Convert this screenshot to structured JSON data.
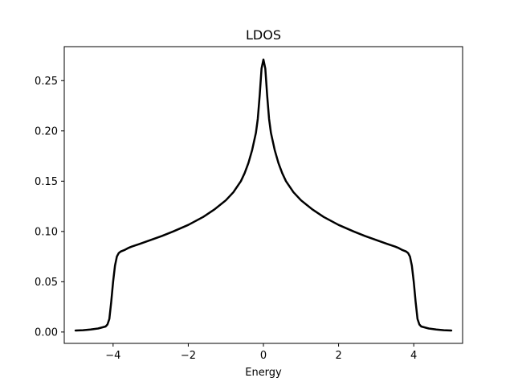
{
  "chart_data": {
    "type": "line",
    "title": "LDOS",
    "xlabel": "Energy",
    "ylabel": "",
    "xlim": [
      -5.3,
      5.3
    ],
    "ylim": [
      -0.0113,
      0.2838
    ],
    "grid": false,
    "legend": "none",
    "line_color": "#000000",
    "x_ticks": [
      {
        "value": -4,
        "label": "−4"
      },
      {
        "value": -2,
        "label": "−2"
      },
      {
        "value": 0,
        "label": "0"
      },
      {
        "value": 2,
        "label": "2"
      },
      {
        "value": 4,
        "label": "4"
      }
    ],
    "y_ticks": [
      {
        "value": 0.0,
        "label": "0.00"
      },
      {
        "value": 0.05,
        "label": "0.05"
      },
      {
        "value": 0.1,
        "label": "0.10"
      },
      {
        "value": 0.15,
        "label": "0.15"
      },
      {
        "value": 0.2,
        "label": "0.20"
      },
      {
        "value": 0.25,
        "label": "0.25"
      }
    ],
    "series": [
      {
        "x": [
          -5.0,
          -4.8,
          -4.6,
          -4.4,
          -4.3,
          -4.2,
          -4.15,
          -4.1,
          -4.05,
          -4.0,
          -3.95,
          -3.9,
          -3.85,
          -3.8,
          -3.7,
          -3.6,
          -3.5,
          -3.3,
          -3.0,
          -2.7,
          -2.4,
          -2.0,
          -1.6,
          -1.3,
          -1.0,
          -0.8,
          -0.6,
          -0.5,
          -0.4,
          -0.3,
          -0.2,
          -0.15,
          -0.1,
          -0.05,
          0.0,
          0.05,
          0.1,
          0.15,
          0.2,
          0.3,
          0.4,
          0.5,
          0.6,
          0.8,
          1.0,
          1.3,
          1.6,
          2.0,
          2.4,
          2.7,
          3.0,
          3.3,
          3.5,
          3.6,
          3.7,
          3.8,
          3.85,
          3.9,
          3.95,
          4.0,
          4.05,
          4.1,
          4.15,
          4.2,
          4.3,
          4.4,
          4.6,
          4.8,
          5.0
        ],
        "y": [
          0.0015,
          0.0018,
          0.0025,
          0.0035,
          0.0045,
          0.0055,
          0.0075,
          0.013,
          0.03,
          0.05,
          0.066,
          0.075,
          0.0785,
          0.08,
          0.0815,
          0.0835,
          0.085,
          0.0875,
          0.0915,
          0.0955,
          0.1,
          0.1065,
          0.1145,
          0.122,
          0.131,
          0.139,
          0.15,
          0.158,
          0.168,
          0.181,
          0.198,
          0.212,
          0.235,
          0.262,
          0.271,
          0.262,
          0.235,
          0.212,
          0.198,
          0.181,
          0.168,
          0.158,
          0.15,
          0.139,
          0.131,
          0.122,
          0.1145,
          0.1065,
          0.1,
          0.0955,
          0.0915,
          0.0875,
          0.085,
          0.0835,
          0.0815,
          0.08,
          0.0785,
          0.075,
          0.066,
          0.05,
          0.03,
          0.013,
          0.0075,
          0.0055,
          0.0045,
          0.0035,
          0.0025,
          0.0018,
          0.0015
        ]
      }
    ]
  }
}
